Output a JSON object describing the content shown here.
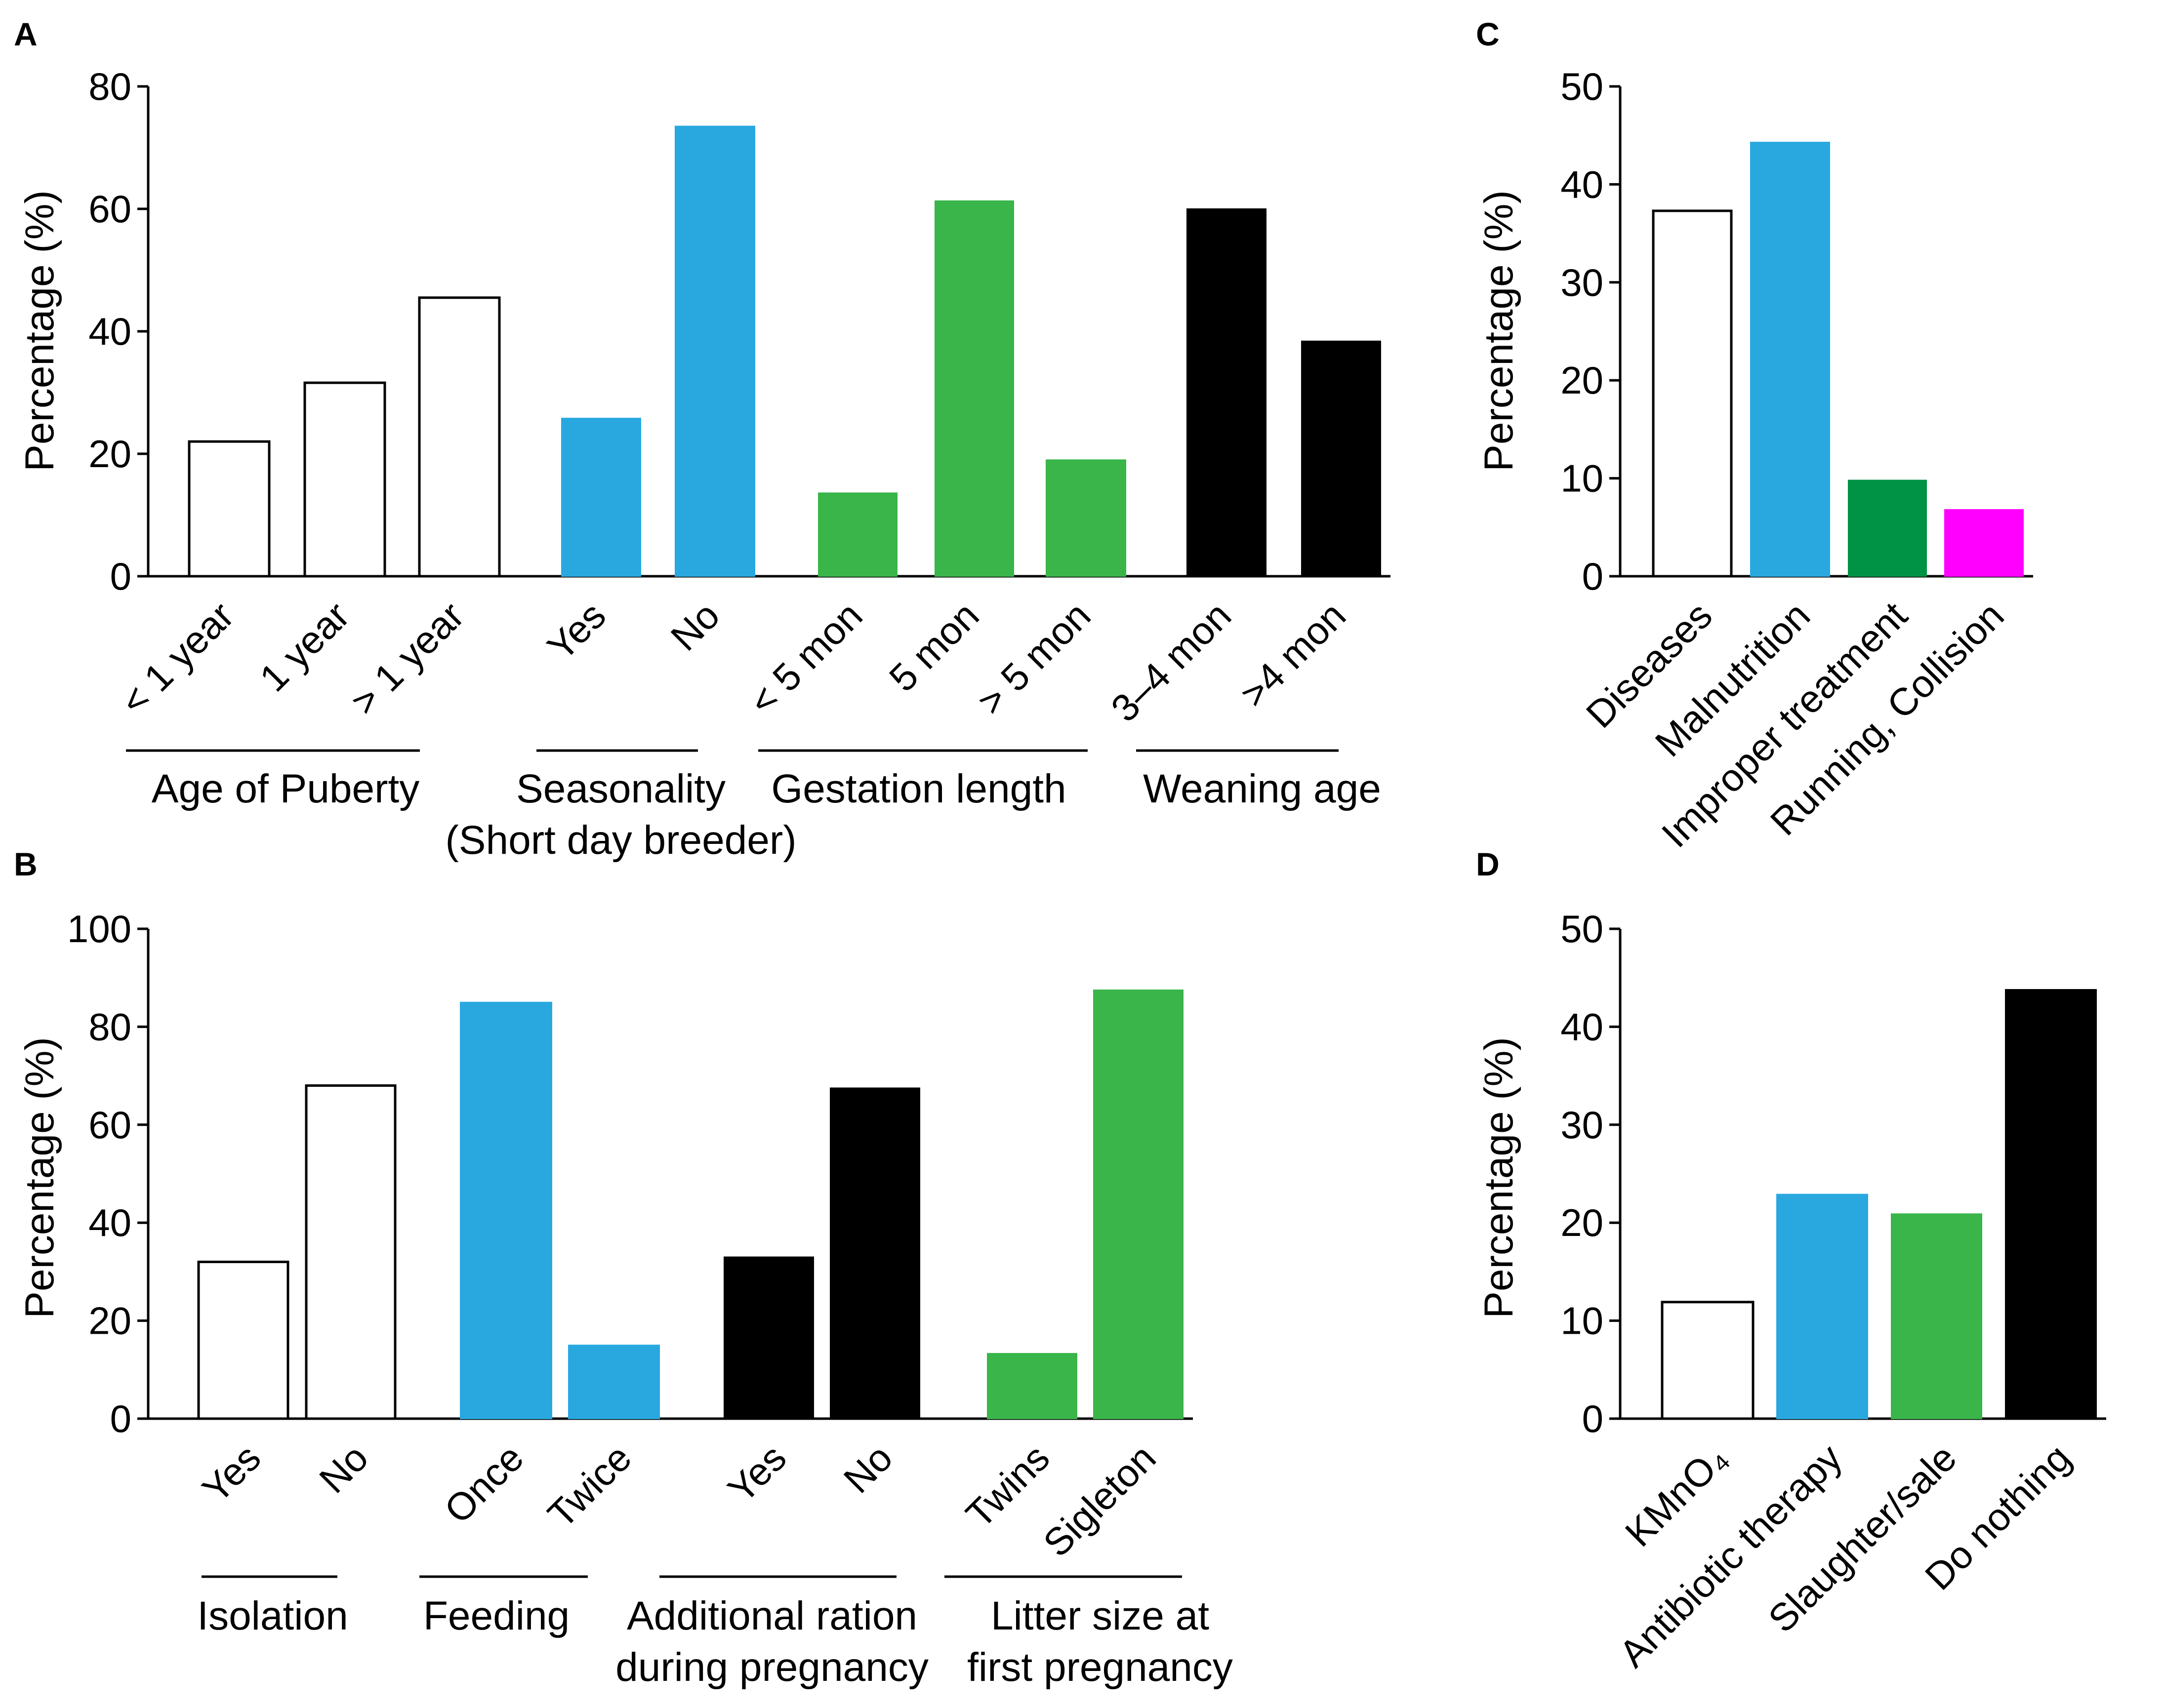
{
  "chart_data": [
    {
      "panel": "A",
      "type": "bar",
      "ylabel": "Percentage (%)",
      "ylim": [
        0,
        80
      ],
      "yticks": [
        "0",
        "20",
        "40",
        "60",
        "80"
      ],
      "categories": [
        "< 1 year",
        "1 year",
        "> 1 year",
        "Yes",
        "No",
        "< 5 mon",
        "5 mon",
        "> 5 mon",
        "3–4 mon",
        ">4 mon"
      ],
      "values": [
        22,
        31.6,
        45.5,
        25.8,
        73.5,
        13.6,
        61.3,
        19,
        60,
        38.4
      ],
      "colors": [
        "#ffffff",
        "#ffffff",
        "#ffffff",
        "#29a8e0",
        "#29a8e0",
        "#39b54a",
        "#39b54a",
        "#39b54a",
        "#000000",
        "#000000"
      ],
      "groups": [
        {
          "label": [
            "Age of Puberty"
          ]
        },
        {
          "label": [
            "Seasonality",
            "(Short day breeder)"
          ]
        },
        {
          "label": [
            "Gestation length"
          ]
        },
        {
          "label": [
            "Weaning age"
          ]
        }
      ]
    },
    {
      "panel": "B",
      "type": "bar",
      "ylabel": "Percentage (%)",
      "ylim": [
        0,
        100
      ],
      "yticks": [
        "0",
        "20",
        "40",
        "60",
        "80",
        "100"
      ],
      "categories": [
        "Yes",
        "No",
        "Once",
        "Twice",
        "Yes",
        "No",
        "Twins",
        "Sigleton"
      ],
      "values": [
        32,
        68,
        85,
        15,
        33,
        67.5,
        13.3,
        87.5
      ],
      "colors": [
        "#ffffff",
        "#ffffff",
        "#29a8e0",
        "#29a8e0",
        "#000000",
        "#000000",
        "#39b54a",
        "#39b54a"
      ],
      "groups": [
        {
          "label": [
            "Isolation"
          ]
        },
        {
          "label": [
            "Feeding"
          ]
        },
        {
          "label": [
            "Additional ration",
            "during pregnancy"
          ]
        },
        {
          "label": [
            "Litter size at",
            "first pregnancy"
          ]
        }
      ]
    },
    {
      "panel": "C",
      "type": "bar",
      "ylabel": "Percentage (%)",
      "ylim": [
        0,
        50
      ],
      "yticks": [
        "0",
        "10",
        "20",
        "30",
        "40",
        "50"
      ],
      "categories": [
        "Diseases",
        "Malnutrition",
        "Improper treatment",
        "Running, Collision"
      ],
      "values": [
        37.3,
        44.3,
        9.8,
        6.8
      ],
      "colors": [
        "#ffffff",
        "#29a8e0",
        "#009245",
        "#ff00ff"
      ]
    },
    {
      "panel": "D",
      "type": "bar",
      "ylabel": "Percentage (%)",
      "ylim": [
        0,
        50
      ],
      "yticks": [
        "0",
        "10",
        "20",
        "30",
        "40",
        "50"
      ],
      "categories": [
        "KMnO₄",
        "Antibiotic therapy",
        "Slaughter/sale",
        "Do nothing"
      ],
      "values": [
        11.9,
        22.9,
        20.9,
        43.8
      ],
      "colors": [
        "#ffffff",
        "#29a8e0",
        "#39b54a",
        "#000000"
      ]
    }
  ]
}
